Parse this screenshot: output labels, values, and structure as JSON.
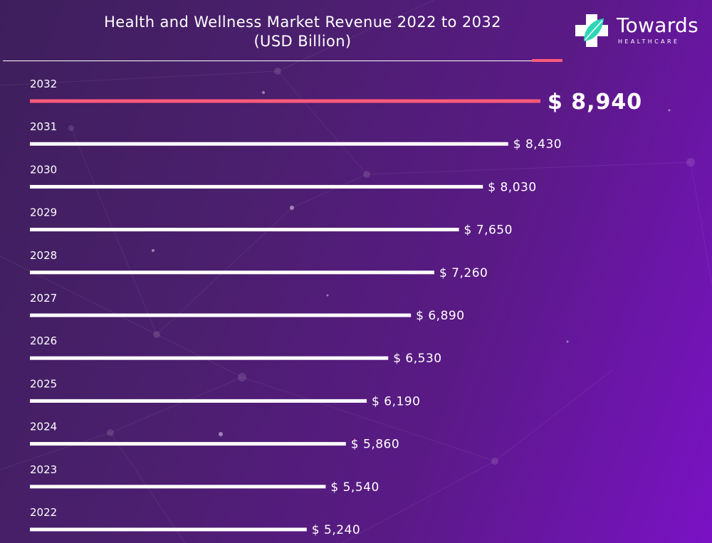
{
  "title_line1": "Health and Wellness Market Revenue 2022 to 2032",
  "title_line2": "(USD Billion)",
  "logo": {
    "name": "Towards",
    "sub": "HEALTHCARE",
    "icon": "medical-cross-leaf-icon"
  },
  "colors": {
    "background_start": "#3e1f5c",
    "background_end": "#7a12c4",
    "bar": "#ffffff",
    "highlight_bar": "#ff5a7a",
    "logo_leaf": "#2ed6b8"
  },
  "chart_data": {
    "type": "bar",
    "orientation": "horizontal",
    "title": "Health and Wellness Market Revenue 2022 to 2032 (USD Billion)",
    "categories": [
      "2032",
      "2031",
      "2030",
      "2029",
      "2028",
      "2027",
      "2026",
      "2025",
      "2024",
      "2023",
      "2022"
    ],
    "values": [
      8940,
      8430,
      8030,
      7650,
      7260,
      6890,
      6530,
      6190,
      5860,
      5540,
      5240
    ],
    "value_labels": [
      "$ 8,940",
      "$ 8,430",
      "$ 8,030",
      "$ 7,650",
      "$ 7,260",
      "$ 6,890",
      "$ 6,530",
      "$ 6,190",
      "$ 5,860",
      "$ 5,540",
      "$ 5,240"
    ],
    "highlight": "2032",
    "grid": false,
    "legend": "none"
  }
}
